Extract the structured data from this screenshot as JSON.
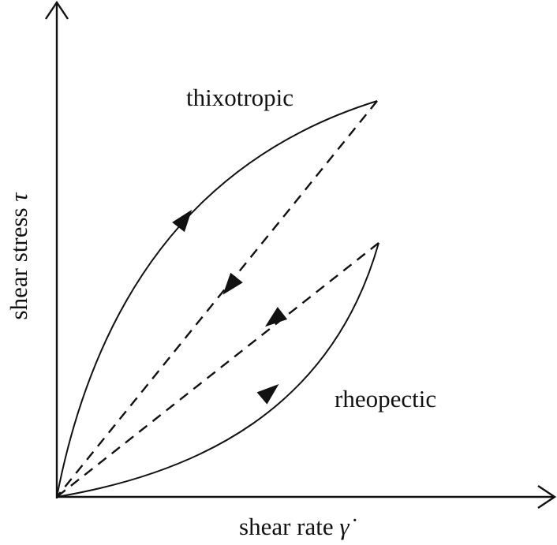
{
  "x_axis": {
    "label": "shear rate",
    "symbol": "γ̇"
  },
  "y_axis": {
    "label": "shear stress",
    "symbol": "τ"
  },
  "curves": [
    {
      "label": "thixotropic"
    },
    {
      "label": "rheopectic"
    }
  ]
}
